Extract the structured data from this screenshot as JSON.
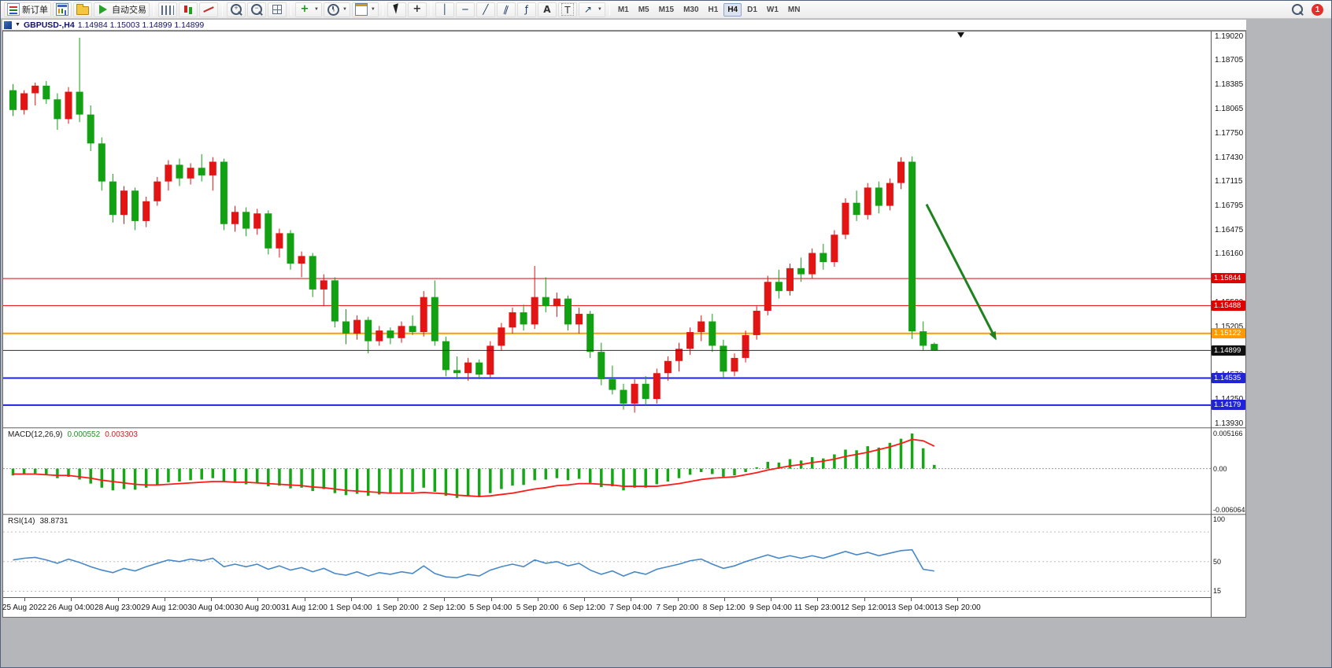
{
  "toolbar": {
    "badge_count": "1",
    "timeframes": [
      "M1",
      "M5",
      "M15",
      "M30",
      "H1",
      "H4",
      "D1",
      "W1",
      "MN"
    ],
    "active_timeframe": "H4",
    "groups": [
      [
        {
          "name": "new-order-button",
          "icon": "neworder",
          "label": "新订单"
        },
        {
          "name": "charts-button",
          "icon": "charts"
        },
        {
          "name": "profiles-button",
          "icon": "profiles"
        },
        {
          "name": "autotrading-button",
          "icon": "autotrading",
          "label": "自动交易"
        }
      ],
      [
        {
          "name": "bar-chart-button",
          "icon": "bars"
        },
        {
          "name": "candlestick-chart-button",
          "icon": "candlesticks"
        },
        {
          "name": "line-chart-button",
          "icon": "linechart"
        }
      ],
      [
        {
          "name": "zoom-in-button",
          "icon": "zoomin"
        },
        {
          "name": "zoom-out-button",
          "icon": "zoomout"
        },
        {
          "name": "tile-windows-button",
          "icon": "tile"
        }
      ],
      [
        {
          "name": "indicators-button",
          "icon": "indicators",
          "glyph": "+",
          "caret": true
        },
        {
          "name": "periods-button",
          "icon": "periods",
          "caret": true
        },
        {
          "name": "templates-button",
          "icon": "templates",
          "caret": true
        }
      ],
      [
        {
          "name": "cursor-button",
          "icon": "cursor"
        },
        {
          "name": "crosshair-button",
          "icon": "crosshair",
          "glyph": "+"
        }
      ],
      [
        {
          "name": "vertical-line-button",
          "icon": "vline",
          "glyph": "│"
        },
        {
          "name": "horizontal-line-button",
          "icon": "hline",
          "glyph": "─"
        },
        {
          "name": "trendline-button",
          "icon": "trendline",
          "glyph": "╱"
        },
        {
          "name": "channel-button",
          "icon": "channel",
          "glyph": "∥"
        },
        {
          "name": "fibonacci-button",
          "icon": "fibo",
          "glyph": "ƒ"
        },
        {
          "name": "text-button",
          "icon": "text",
          "glyph": "A"
        },
        {
          "name": "text-label-button",
          "icon": "textlabel",
          "glyph": "T"
        },
        {
          "name": "arrows-button",
          "icon": "arrows",
          "glyph": "↗",
          "caret": true
        }
      ]
    ]
  },
  "chart": {
    "title": "GBPUSD-,H4",
    "quote": "1.14984 1.15003 1.14899 1.14899"
  },
  "chart_data": {
    "type": "candlestick",
    "symbol": "GBPUSD",
    "timeframe": "H4",
    "ohlc_display": {
      "open": "1.14984",
      "high": "1.15003",
      "low": "1.14899",
      "close": "1.14899"
    },
    "layout": {
      "candle_step": 14.1,
      "body_width": 9,
      "grid": false,
      "legend_position": "none"
    },
    "colors": {
      "up_candle": "#e21414",
      "down_candle": "#12a112",
      "macd_hist": "#14a814",
      "macd_signal": "#ff1a1a",
      "rsi_line": "#4788c8",
      "price_line": "#2b2b2b",
      "arrow": "#1e821e"
    },
    "price_axis": {
      "max": 1.1902,
      "min": 1.1393,
      "labels": [
        "1.19020",
        "1.18705",
        "1.18385",
        "1.18065",
        "1.17750",
        "1.17430",
        "1.17115",
        "1.16795",
        "1.16475",
        "1.16160",
        "1.15840",
        "1.15520",
        "1.15205",
        "1.14890",
        "1.14570",
        "1.14250",
        "1.13930"
      ]
    },
    "hlines": [
      {
        "price": 1.15844,
        "label": "1.15844",
        "color": "#e00000",
        "width": 1
      },
      {
        "price": 1.15488,
        "label": "1.15488",
        "color": "#e00000",
        "width": 1
      },
      {
        "price": 1.15122,
        "label": "1.15122",
        "color": "#ff9a00",
        "width": 2
      },
      {
        "price": 1.14535,
        "label": "1.14535",
        "color": "#2024d4",
        "width": 2
      },
      {
        "price": 1.14179,
        "label": "1.14179",
        "color": "#2024d4",
        "width": 2
      }
    ],
    "current_price": {
      "price": 1.14899,
      "label": "1.14899",
      "color": "#101010"
    },
    "arrow": {
      "start": {
        "i": 82.3,
        "price": 1.1682
      },
      "end": {
        "i": 88.6,
        "price": 1.1503
      }
    },
    "date_labels": [
      "25 Aug 2022",
      "26 Aug 04:00",
      "28 Aug 23:00",
      "29 Aug 12:00",
      "30 Aug 04:00",
      "30 Aug 20:00",
      "31 Aug 12:00",
      "1 Sep 04:00",
      "1 Sep 20:00",
      "2 Sep 12:00",
      "5 Sep 04:00",
      "5 Sep 20:00",
      "6 Sep 12:00",
      "7 Sep 04:00",
      "7 Sep 20:00",
      "8 Sep 12:00",
      "9 Sep 04:00",
      "11 Sep 23:00",
      "12 Sep 12:00",
      "13 Sep 04:00",
      "13 Sep 20:00"
    ],
    "candles": [
      [
        1.1832,
        1.184,
        1.1798,
        1.1806
      ],
      [
        1.1806,
        1.1832,
        1.18,
        1.1828
      ],
      [
        1.1828,
        1.1842,
        1.1812,
        1.1838
      ],
      [
        1.1838,
        1.1844,
        1.1814,
        1.182
      ],
      [
        1.182,
        1.1828,
        1.178,
        1.1794
      ],
      [
        1.1794,
        1.1836,
        1.1788,
        1.183
      ],
      [
        1.183,
        1.1901,
        1.179,
        1.18
      ],
      [
        1.18,
        1.1812,
        1.1752,
        1.1762
      ],
      [
        1.1762,
        1.177,
        1.17,
        1.1712
      ],
      [
        1.1712,
        1.1722,
        1.1658,
        1.1668
      ],
      [
        1.1668,
        1.1706,
        1.1656,
        1.17
      ],
      [
        1.17,
        1.1704,
        1.1648,
        1.166
      ],
      [
        1.166,
        1.1692,
        1.1652,
        1.1686
      ],
      [
        1.1686,
        1.1718,
        1.168,
        1.1712
      ],
      [
        1.1712,
        1.174,
        1.17,
        1.1734
      ],
      [
        1.1734,
        1.1742,
        1.1706,
        1.1716
      ],
      [
        1.1716,
        1.1736,
        1.1708,
        1.173
      ],
      [
        1.173,
        1.1748,
        1.1712,
        1.172
      ],
      [
        1.172,
        1.1744,
        1.17,
        1.1738
      ],
      [
        1.1738,
        1.1742,
        1.1648,
        1.1656
      ],
      [
        1.1656,
        1.168,
        1.1646,
        1.1672
      ],
      [
        1.1672,
        1.1678,
        1.164,
        1.165
      ],
      [
        1.165,
        1.1676,
        1.1642,
        1.167
      ],
      [
        1.167,
        1.1674,
        1.1616,
        1.1624
      ],
      [
        1.1624,
        1.165,
        1.1612,
        1.1644
      ],
      [
        1.1644,
        1.1648,
        1.1596,
        1.1604
      ],
      [
        1.1604,
        1.162,
        1.1586,
        1.1614
      ],
      [
        1.1614,
        1.1618,
        1.156,
        1.157
      ],
      [
        1.157,
        1.159,
        1.1548,
        1.1582
      ],
      [
        1.1582,
        1.1586,
        1.152,
        1.1528
      ],
      [
        1.1528,
        1.1544,
        1.1498,
        1.1512
      ],
      [
        1.1512,
        1.1536,
        1.1504,
        1.153
      ],
      [
        1.153,
        1.1534,
        1.1486,
        1.1502
      ],
      [
        1.1502,
        1.1522,
        1.1496,
        1.1516
      ],
      [
        1.1516,
        1.152,
        1.1498,
        1.1506
      ],
      [
        1.1506,
        1.1528,
        1.15,
        1.1522
      ],
      [
        1.1522,
        1.1536,
        1.151,
        1.1514
      ],
      [
        1.1514,
        1.1568,
        1.1508,
        1.156
      ],
      [
        1.156,
        1.1582,
        1.1496,
        1.1502
      ],
      [
        1.1502,
        1.1508,
        1.1456,
        1.1464
      ],
      [
        1.1464,
        1.1482,
        1.1452,
        1.146
      ],
      [
        1.146,
        1.148,
        1.145,
        1.1474
      ],
      [
        1.1474,
        1.1478,
        1.1452,
        1.1458
      ],
      [
        1.1458,
        1.1502,
        1.1454,
        1.1496
      ],
      [
        1.1496,
        1.1526,
        1.149,
        1.152
      ],
      [
        1.152,
        1.1546,
        1.1512,
        1.154
      ],
      [
        1.154,
        1.155,
        1.1516,
        1.1524
      ],
      [
        1.1524,
        1.1601,
        1.1518,
        1.156
      ],
      [
        1.156,
        1.1586,
        1.154,
        1.1548
      ],
      [
        1.1548,
        1.1566,
        1.1534,
        1.1558
      ],
      [
        1.1558,
        1.1562,
        1.1516,
        1.1524
      ],
      [
        1.1524,
        1.1546,
        1.1512,
        1.1538
      ],
      [
        1.1538,
        1.1542,
        1.148,
        1.1488
      ],
      [
        1.1488,
        1.15,
        1.1444,
        1.1452
      ],
      [
        1.1452,
        1.147,
        1.1432,
        1.1438
      ],
      [
        1.1438,
        1.1446,
        1.1412,
        1.142
      ],
      [
        1.142,
        1.1452,
        1.1408,
        1.1446
      ],
      [
        1.1446,
        1.1456,
        1.1418,
        1.1426
      ],
      [
        1.1426,
        1.1466,
        1.142,
        1.146
      ],
      [
        1.146,
        1.1482,
        1.145,
        1.1476
      ],
      [
        1.1476,
        1.15,
        1.1462,
        1.1492
      ],
      [
        1.1492,
        1.152,
        1.1484,
        1.1514
      ],
      [
        1.1514,
        1.1536,
        1.1502,
        1.1528
      ],
      [
        1.1528,
        1.1538,
        1.1488,
        1.1496
      ],
      [
        1.1496,
        1.1504,
        1.1454,
        1.1462
      ],
      [
        1.1462,
        1.1486,
        1.1456,
        1.148
      ],
      [
        1.148,
        1.1516,
        1.1474,
        1.151
      ],
      [
        1.151,
        1.1548,
        1.1504,
        1.1542
      ],
      [
        1.1542,
        1.1588,
        1.1536,
        1.158
      ],
      [
        1.158,
        1.1596,
        1.1558,
        1.1568
      ],
      [
        1.1568,
        1.1604,
        1.1562,
        1.1598
      ],
      [
        1.1598,
        1.1612,
        1.158,
        1.159
      ],
      [
        1.159,
        1.1624,
        1.1584,
        1.1618
      ],
      [
        1.1618,
        1.163,
        1.1596,
        1.1606
      ],
      [
        1.1606,
        1.1648,
        1.16,
        1.1642
      ],
      [
        1.1642,
        1.169,
        1.1636,
        1.1684
      ],
      [
        1.1684,
        1.17,
        1.166,
        1.1668
      ],
      [
        1.1668,
        1.171,
        1.1662,
        1.1704
      ],
      [
        1.1704,
        1.1712,
        1.167,
        1.168
      ],
      [
        1.168,
        1.1716,
        1.1674,
        1.171
      ],
      [
        1.171,
        1.1744,
        1.1702,
        1.1738
      ],
      [
        1.1738,
        1.1745,
        1.1505,
        1.1515
      ],
      [
        1.1515,
        1.1528,
        1.149,
        1.1496
      ],
      [
        1.14984,
        1.15003,
        1.14899,
        1.14899
      ]
    ],
    "macd": {
      "name_label": "MACD(12,26,9)",
      "value": "0.000552",
      "signal_value": "0.003303",
      "axis_max": 0.005166,
      "axis_min": -0.006064,
      "axis_labels": [
        {
          "v": 0.005166,
          "t": "0.005166"
        },
        {
          "v": 0,
          "t": "0.00"
        },
        {
          "v": -0.006064,
          "t": "-0.006064"
        }
      ],
      "hist": [
        -0.001,
        -0.0008,
        -0.0007,
        -0.0009,
        -0.0014,
        -0.0012,
        -0.0016,
        -0.0022,
        -0.0028,
        -0.0032,
        -0.003,
        -0.0031,
        -0.0028,
        -0.0024,
        -0.002,
        -0.0019,
        -0.0017,
        -0.0016,
        -0.0014,
        -0.002,
        -0.0021,
        -0.0023,
        -0.0022,
        -0.0026,
        -0.0025,
        -0.0029,
        -0.0028,
        -0.0033,
        -0.003,
        -0.0036,
        -0.0039,
        -0.0037,
        -0.004,
        -0.0038,
        -0.0037,
        -0.0035,
        -0.0034,
        -0.0028,
        -0.0034,
        -0.004,
        -0.0043,
        -0.0041,
        -0.0042,
        -0.0036,
        -0.003,
        -0.0025,
        -0.0024,
        -0.0017,
        -0.0016,
        -0.0014,
        -0.0017,
        -0.0015,
        -0.0021,
        -0.0027,
        -0.0026,
        -0.0032,
        -0.0028,
        -0.0028,
        -0.0023,
        -0.0019,
        -0.0014,
        -0.0009,
        -0.0005,
        -0.0008,
        -0.0012,
        -0.001,
        -0.0005,
        0.0002,
        0.001,
        0.0009,
        0.0014,
        0.0012,
        0.0017,
        0.0015,
        0.0021,
        0.0028,
        0.0027,
        0.0033,
        0.0031,
        0.0038,
        0.0044,
        0.005166,
        0.003,
        0.000552
      ],
      "signal": [
        -0.0008,
        -0.0008,
        -0.0008,
        -0.0009,
        -0.001,
        -0.001,
        -0.0012,
        -0.0014,
        -0.0017,
        -0.0019,
        -0.0021,
        -0.0023,
        -0.0024,
        -0.0024,
        -0.0023,
        -0.0022,
        -0.0021,
        -0.002,
        -0.0019,
        -0.0019,
        -0.002,
        -0.002,
        -0.0021,
        -0.0022,
        -0.0023,
        -0.0024,
        -0.0025,
        -0.0027,
        -0.0028,
        -0.003,
        -0.0032,
        -0.0033,
        -0.0034,
        -0.0035,
        -0.0036,
        -0.0036,
        -0.0036,
        -0.0035,
        -0.0036,
        -0.0037,
        -0.0039,
        -0.004,
        -0.0041,
        -0.004,
        -0.0038,
        -0.0036,
        -0.0033,
        -0.003,
        -0.0028,
        -0.0025,
        -0.0024,
        -0.0022,
        -0.0022,
        -0.0023,
        -0.0024,
        -0.0026,
        -0.0026,
        -0.0026,
        -0.0026,
        -0.0024,
        -0.0022,
        -0.0019,
        -0.0016,
        -0.0014,
        -0.0013,
        -0.0012,
        -0.0009,
        -0.0006,
        -0.0002,
        0.0001,
        0.0004,
        0.0006,
        0.0009,
        0.0011,
        0.0014,
        0.0018,
        0.0021,
        0.0024,
        0.0028,
        0.0032,
        0.0037,
        0.0043,
        0.0041,
        0.003303
      ]
    },
    "rsi": {
      "name_label": "RSI(14)",
      "value": "38.8731",
      "axis": [
        {
          "v": 100,
          "t": "100"
        },
        {
          "v": 50,
          "t": "50"
        },
        {
          "v": 15,
          "t": "15"
        }
      ],
      "levels": [
        85,
        50,
        15
      ],
      "series": [
        52,
        54,
        55,
        52,
        48,
        53,
        49,
        44,
        40,
        37,
        42,
        39,
        44,
        48,
        52,
        50,
        53,
        51,
        54,
        44,
        47,
        44,
        47,
        41,
        45,
        40,
        43,
        38,
        42,
        36,
        34,
        38,
        33,
        37,
        35,
        38,
        36,
        45,
        36,
        32,
        31,
        35,
        33,
        40,
        44,
        47,
        44,
        52,
        48,
        50,
        45,
        48,
        40,
        35,
        39,
        33,
        38,
        35,
        41,
        44,
        47,
        51,
        53,
        47,
        42,
        45,
        50,
        54,
        58,
        54,
        57,
        54,
        57,
        54,
        58,
        62,
        58,
        61,
        57,
        60,
        63,
        64,
        41,
        38.8731
      ]
    }
  }
}
